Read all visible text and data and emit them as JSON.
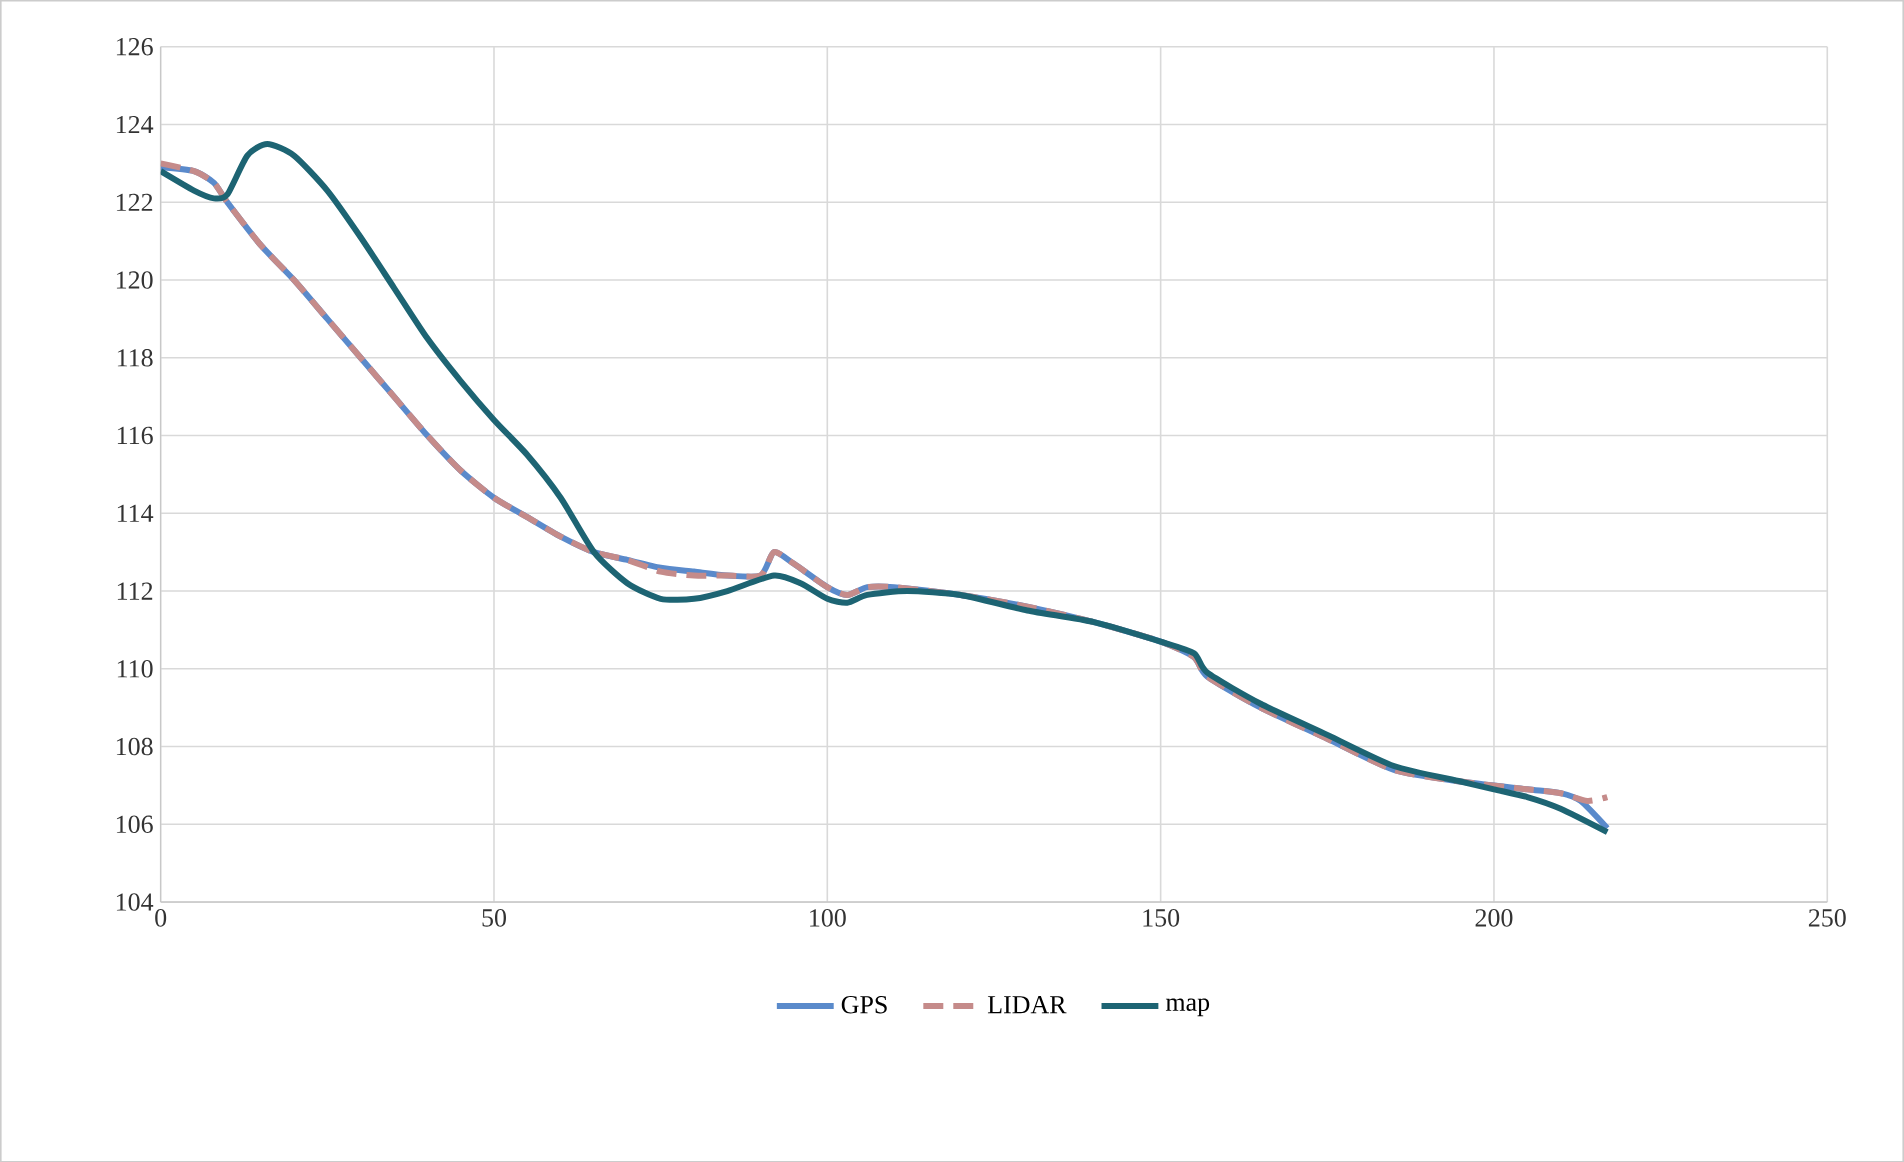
{
  "chart_data": {
    "type": "line",
    "xlim": [
      0,
      250
    ],
    "ylim": [
      104,
      126
    ],
    "xticks": [
      0,
      50,
      100,
      150,
      200,
      250
    ],
    "yticks": [
      104,
      106,
      108,
      110,
      112,
      114,
      116,
      118,
      120,
      122,
      124,
      126
    ],
    "grid": true,
    "legend": "bottom",
    "marker": "none",
    "series": [
      {
        "name": "GPS",
        "color": "#5a8acb",
        "line_style": "solid",
        "x": [
          0,
          5,
          8,
          10,
          15,
          20,
          25,
          30,
          35,
          40,
          45,
          50,
          55,
          60,
          65,
          70,
          75,
          80,
          85,
          90,
          92,
          95,
          100,
          103,
          106,
          110,
          120,
          130,
          140,
          150,
          155,
          157,
          165,
          175,
          185,
          195,
          205,
          210,
          213,
          217
        ],
        "values": [
          122.9,
          122.8,
          122.5,
          122.0,
          120.9,
          120.0,
          119.0,
          118.0,
          117.0,
          116.0,
          115.1,
          114.4,
          113.9,
          113.4,
          113.0,
          112.8,
          112.6,
          112.5,
          112.4,
          112.4,
          113.0,
          112.7,
          112.1,
          111.9,
          112.1,
          112.1,
          111.9,
          111.6,
          111.2,
          110.7,
          110.3,
          109.8,
          109.0,
          108.2,
          107.4,
          107.1,
          106.9,
          106.8,
          106.6,
          105.9
        ]
      },
      {
        "name": "LIDAR",
        "color": "#c58b8a",
        "line_style": "dashed",
        "x": [
          0,
          5,
          8,
          10,
          15,
          20,
          25,
          30,
          35,
          40,
          45,
          50,
          55,
          60,
          65,
          70,
          75,
          80,
          85,
          90,
          92,
          95,
          100,
          103,
          106,
          110,
          120,
          130,
          140,
          150,
          155,
          157,
          165,
          175,
          185,
          195,
          205,
          210,
          214,
          217
        ],
        "values": [
          123.0,
          122.8,
          122.5,
          122.0,
          120.9,
          120.0,
          119.0,
          118.0,
          117.0,
          116.0,
          115.1,
          114.4,
          113.9,
          113.4,
          113.0,
          112.8,
          112.5,
          112.4,
          112.4,
          112.4,
          113.0,
          112.7,
          112.1,
          111.9,
          112.1,
          112.1,
          111.9,
          111.6,
          111.2,
          110.7,
          110.3,
          109.8,
          109.0,
          108.2,
          107.4,
          107.1,
          106.9,
          106.8,
          106.6,
          106.7
        ]
      },
      {
        "name": "map",
        "color": "#1d6473",
        "line_style": "solid",
        "x": [
          0,
          5,
          8,
          10,
          13,
          16,
          20,
          25,
          30,
          35,
          40,
          45,
          50,
          55,
          60,
          65,
          70,
          75,
          80,
          85,
          92,
          96,
          100,
          103,
          106,
          112,
          120,
          130,
          140,
          150,
          155,
          157,
          165,
          175,
          185,
          195,
          200,
          205,
          210,
          217
        ],
        "values": [
          122.8,
          122.3,
          122.1,
          122.2,
          123.2,
          123.5,
          123.2,
          122.3,
          121.1,
          119.8,
          118.5,
          117.4,
          116.4,
          115.5,
          114.4,
          113.0,
          112.2,
          111.8,
          111.8,
          112.0,
          112.4,
          112.2,
          111.8,
          111.7,
          111.9,
          112.0,
          111.9,
          111.5,
          111.2,
          110.7,
          110.4,
          109.9,
          109.1,
          108.3,
          107.5,
          107.1,
          106.9,
          106.7,
          106.4,
          105.8
        ]
      }
    ]
  }
}
